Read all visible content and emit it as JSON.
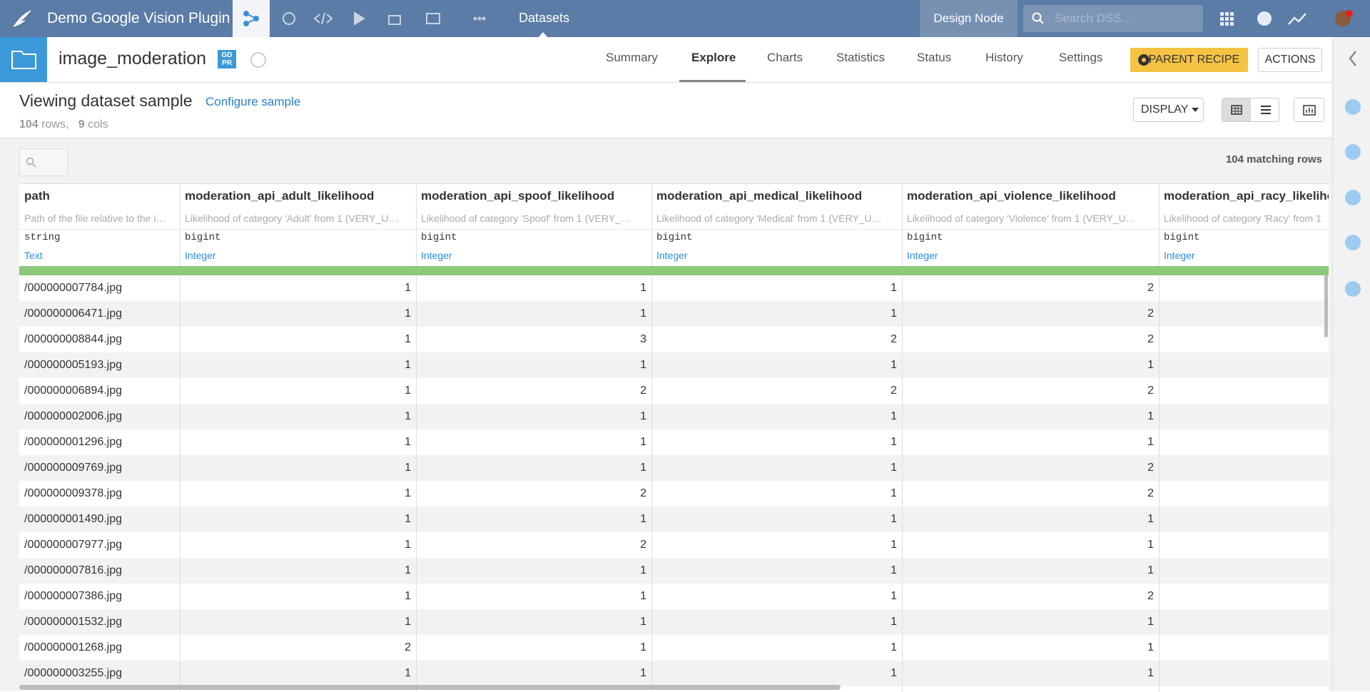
{
  "topbar": {
    "project": "Demo Google Vision Plugin",
    "section": "Datasets",
    "node_label": "Design Node",
    "search_placeholder": "Search DSS..."
  },
  "header": {
    "dataset_name": "image_moderation",
    "badge": "GD PR",
    "tabs": [
      "Summary",
      "Explore",
      "Charts",
      "Statistics",
      "Status",
      "History",
      "Settings"
    ],
    "parent_recipe": "PARENT RECIPE",
    "actions": "ACTIONS"
  },
  "sample": {
    "title": "Viewing dataset sample",
    "configure_link": "Configure sample",
    "rows_count": "104",
    "rows_label": "rows,",
    "cols_count": "9",
    "cols_label": "cols",
    "display_button": "DISPLAY",
    "matching_rows": "104 matching rows"
  },
  "table": {
    "columns": [
      {
        "name": "path",
        "description": "Path of the file relative to the i…",
        "type": "string",
        "meaning": "Text"
      },
      {
        "name": "moderation_api_adult_likelihood",
        "description": "Likelihood of category 'Adult' from 1 (VERY_U…",
        "type": "bigint",
        "meaning": "Integer"
      },
      {
        "name": "moderation_api_spoof_likelihood",
        "description": "Likelihood of category 'Spoof' from 1 (VERY_…",
        "type": "bigint",
        "meaning": "Integer"
      },
      {
        "name": "moderation_api_medical_likelihood",
        "description": "Likelihood of category 'Medical' from 1 (VERY_U…",
        "type": "bigint",
        "meaning": "Integer"
      },
      {
        "name": "moderation_api_violence_likelihood",
        "description": "Likelihood of category 'Violence' from 1 (VERY_U…",
        "type": "bigint",
        "meaning": "Integer"
      },
      {
        "name": "moderation_api_racy_likelihoo",
        "description": "Likelihood of category 'Racy' from 1",
        "type": "bigint",
        "meaning": "Integer"
      }
    ],
    "rows": [
      [
        "/000000007784.jpg",
        1,
        1,
        1,
        2
      ],
      [
        "/000000006471.jpg",
        1,
        1,
        1,
        2
      ],
      [
        "/000000008844.jpg",
        1,
        3,
        2,
        2
      ],
      [
        "/000000005193.jpg",
        1,
        1,
        1,
        1
      ],
      [
        "/000000006894.jpg",
        1,
        2,
        2,
        2
      ],
      [
        "/000000002006.jpg",
        1,
        1,
        1,
        1
      ],
      [
        "/000000001296.jpg",
        1,
        1,
        1,
        1
      ],
      [
        "/000000009769.jpg",
        1,
        1,
        1,
        2
      ],
      [
        "/000000009378.jpg",
        1,
        2,
        1,
        2
      ],
      [
        "/000000001490.jpg",
        1,
        1,
        1,
        1
      ],
      [
        "/000000007977.jpg",
        1,
        2,
        1,
        1
      ],
      [
        "/000000007816.jpg",
        1,
        1,
        1,
        1
      ],
      [
        "/000000007386.jpg",
        1,
        1,
        1,
        2
      ],
      [
        "/000000001532.jpg",
        1,
        1,
        1,
        1
      ],
      [
        "/000000001268.jpg",
        2,
        1,
        1,
        1
      ],
      [
        "/000000003255.jpg",
        1,
        1,
        1,
        1
      ]
    ]
  }
}
